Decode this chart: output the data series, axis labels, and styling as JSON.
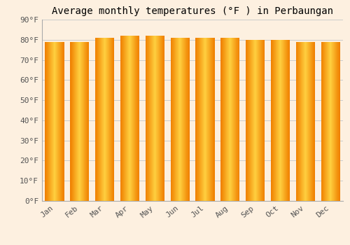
{
  "title": "Average monthly temperatures (°F ) in Perbaungan",
  "months": [
    "Jan",
    "Feb",
    "Mar",
    "Apr",
    "May",
    "Jun",
    "Jul",
    "Aug",
    "Sep",
    "Oct",
    "Nov",
    "Dec"
  ],
  "values": [
    79,
    79,
    81,
    82,
    82,
    81,
    81,
    81,
    80,
    80,
    79,
    79
  ],
  "background_color": "#fdf0e0",
  "plot_bg_color": "#fdf0e0",
  "grid_color": "#cccccc",
  "ylim": [
    0,
    90
  ],
  "yticks": [
    0,
    10,
    20,
    30,
    40,
    50,
    60,
    70,
    80,
    90
  ],
  "ytick_labels": [
    "0°F",
    "10°F",
    "20°F",
    "30°F",
    "40°F",
    "50°F",
    "60°F",
    "70°F",
    "80°F",
    "90°F"
  ],
  "title_fontsize": 10,
  "tick_fontsize": 8,
  "font_family": "monospace",
  "bar_color_center": "#FFD040",
  "bar_color_edge": "#F08000",
  "bar_width": 0.75,
  "n_gradient_steps": 40
}
